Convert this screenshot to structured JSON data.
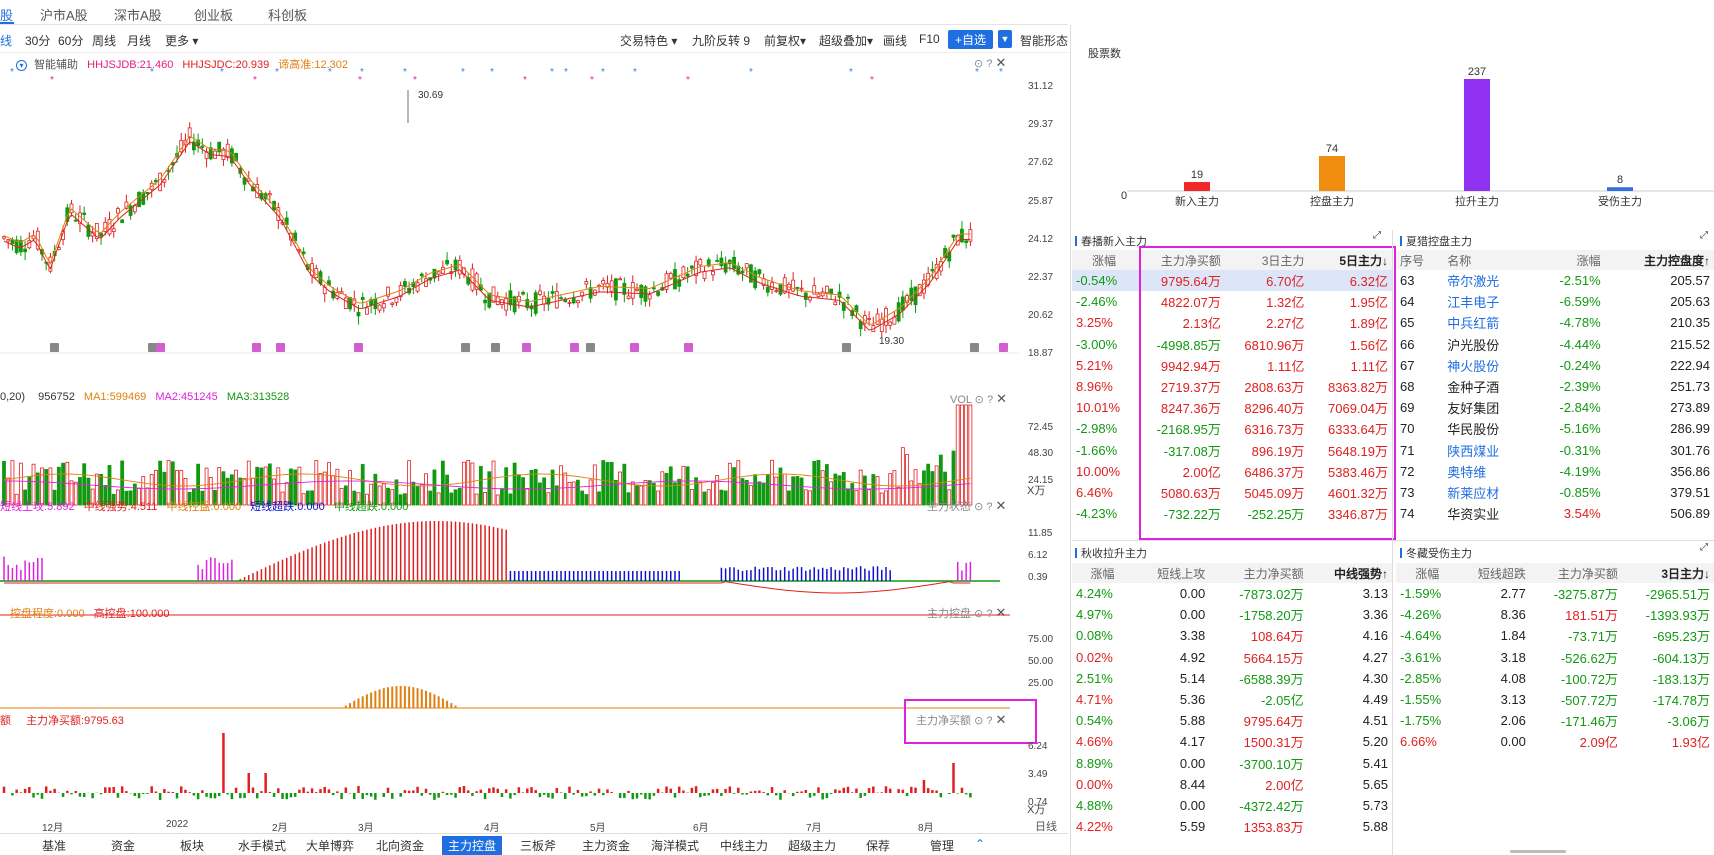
{
  "topnav": [
    "股",
    "沪市A股",
    "深市A股",
    "创业板",
    "科创板"
  ],
  "toolbar": {
    "periods": [
      "线",
      "30分",
      "60分",
      "周线",
      "月线",
      "更多 ▾"
    ],
    "right": [
      "交易特色 ▾",
      "九阶反转 9",
      "前复权▾",
      "超级叠加▾",
      "画线",
      "F10"
    ],
    "add_label": "+自选",
    "drop": "▼",
    "smart": "智能形态"
  },
  "kline": {
    "indicators": {
      "assist": "智能辅助",
      "hhjsjdb": "HHJSJDB:21.460",
      "hhjsjdc": "HHJSJDC:20.939",
      "high": "谛高准:12.302"
    },
    "axis": [
      "31.12",
      "29.37",
      "27.62",
      "25.87",
      "24.12",
      "22.37",
      "20.62",
      "18.87"
    ],
    "high_label": "30.69",
    "low_label": "19.30"
  },
  "vol": {
    "labels": {
      "param": "0,20)",
      "vol": "956752",
      "ma1": "MA1:599469",
      "ma2": "MA2:451245",
      "ma3": "MA3:313528"
    },
    "tool": "VOL",
    "axis": [
      "72.45",
      "48.30",
      "24.15"
    ],
    "unit": "X万"
  },
  "state": {
    "labels": {
      "a": "短线上攻:5.892",
      "b": "中线强势:4.511",
      "c": "中线控盘:0.000",
      "d": "短线超跌:0.000",
      "e": "中线超跌:0.000"
    },
    "tool": "主力状态",
    "axis": [
      "11.85",
      "6.12",
      "0.39"
    ]
  },
  "ctrl": {
    "labels": {
      "a": "控盘程度:0.000",
      "b": "高控盘:100.000"
    },
    "tool": "主力控盘",
    "axis": [
      "75.00",
      "50.00",
      "25.00"
    ]
  },
  "net": {
    "labels": {
      "pre": "额",
      "a": "主力净买额:9795.63"
    },
    "tool": "主力净买额",
    "axis": [
      "6.24",
      "3.49",
      "0.74"
    ],
    "unit": "X万"
  },
  "xaxis": [
    "12月",
    "2022",
    "2月",
    "3月",
    "4月",
    "5月",
    "6月",
    "7月",
    "8月"
  ],
  "xaxis_right": "日线",
  "bottomtabs": [
    "基准",
    "资金",
    "板块",
    "水手模式",
    "大单博弈",
    "北向资金",
    "主力控盘",
    "三板斧",
    "主力资金",
    "海洋模式",
    "中线主力",
    "超级主力",
    "保荐",
    "管理"
  ],
  "active_tab": "主力控盘",
  "chart_data": {
    "type": "bar",
    "ylabel": "股票数",
    "zero_label": "0",
    "categories": [
      "新入主力",
      "控盘主力",
      "拉升主力",
      "受伤主力"
    ],
    "values": [
      19,
      74,
      237,
      8
    ],
    "colors": [
      "#f02828",
      "#f08c10",
      "#9030f0",
      "#3070e0"
    ]
  },
  "panel_new": {
    "title": "春播新入主力",
    "headers": [
      "涨幅",
      "主力净买额",
      "3日主力",
      "5日主力↓"
    ],
    "rows": [
      [
        "-0.54%",
        "9795.64万",
        "6.70亿",
        "6.32亿"
      ],
      [
        "-2.46%",
        "4822.07万",
        "1.32亿",
        "1.95亿"
      ],
      [
        "3.25%",
        "2.13亿",
        "2.27亿",
        "1.89亿"
      ],
      [
        "-3.00%",
        "-4998.85万",
        "6810.96万",
        "1.56亿"
      ],
      [
        "5.21%",
        "9942.94万",
        "1.11亿",
        "1.11亿"
      ],
      [
        "8.96%",
        "2719.37万",
        "2808.63万",
        "8363.82万"
      ],
      [
        "10.01%",
        "8247.36万",
        "8296.40万",
        "7069.04万"
      ],
      [
        "-2.98%",
        "-2168.95万",
        "6316.73万",
        "6333.64万"
      ],
      [
        "-1.66%",
        "-317.08万",
        "896.19万",
        "5648.19万"
      ],
      [
        "10.00%",
        "2.00亿",
        "6486.37万",
        "5383.46万"
      ],
      [
        "6.46%",
        "5080.63万",
        "5045.09万",
        "4601.32万"
      ],
      [
        "-4.23%",
        "-732.22万",
        "-252.25万",
        "3346.87万"
      ]
    ]
  },
  "panel_ctrl": {
    "title": "夏猎控盘主力",
    "headers": [
      "序号",
      "名称",
      "涨幅",
      "主力控盘度↑"
    ],
    "rows": [
      [
        "63",
        "帝尔激光",
        "-2.51%",
        "205.57"
      ],
      [
        "64",
        "江丰电子",
        "-6.59%",
        "205.63"
      ],
      [
        "65",
        "中兵红箭",
        "-4.78%",
        "210.35"
      ],
      [
        "66",
        "沪光股份",
        "-4.44%",
        "215.52"
      ],
      [
        "67",
        "神火股份",
        "-0.24%",
        "222.94"
      ],
      [
        "68",
        "金种子酒",
        "-2.39%",
        "251.73"
      ],
      [
        "69",
        "友好集团",
        "-2.84%",
        "273.89"
      ],
      [
        "70",
        "华民股份",
        "-5.16%",
        "286.99"
      ],
      [
        "71",
        "陕西煤业",
        "-0.31%",
        "301.76"
      ],
      [
        "72",
        "奥特维",
        "-4.19%",
        "356.86"
      ],
      [
        "73",
        "新莱应材",
        "-0.85%",
        "379.51"
      ],
      [
        "74",
        "华资实业",
        "3.54%",
        "506.89"
      ]
    ]
  },
  "panel_up": {
    "title": "秋收拉升主力",
    "headers": [
      "涨幅",
      "短线上攻",
      "主力净买额",
      "中线强势↑"
    ],
    "rows": [
      [
        "4.24%",
        "0.00",
        "-7873.02万",
        "3.13"
      ],
      [
        "4.97%",
        "0.00",
        "-1758.20万",
        "3.36"
      ],
      [
        "0.08%",
        "3.38",
        "108.64万",
        "4.16"
      ],
      [
        "0.02%",
        "4.92",
        "5664.15万",
        "4.27"
      ],
      [
        "2.51%",
        "5.14",
        "-6588.39万",
        "4.30"
      ],
      [
        "4.71%",
        "5.36",
        "-2.05亿",
        "4.49"
      ],
      [
        "0.54%",
        "5.88",
        "9795.64万",
        "4.51"
      ],
      [
        "4.66%",
        "4.17",
        "1500.31万",
        "5.20"
      ],
      [
        "8.89%",
        "0.00",
        "-3700.10万",
        "5.41"
      ],
      [
        "0.00%",
        "8.44",
        "2.00亿",
        "5.65"
      ],
      [
        "4.88%",
        "0.00",
        "-4372.42万",
        "5.73"
      ],
      [
        "4.22%",
        "5.59",
        "1353.83万",
        "5.88"
      ]
    ]
  },
  "panel_hurt": {
    "title": "冬藏受伤主力",
    "headers": [
      "涨幅",
      "短线超跌",
      "主力净买额",
      "3日主力↓"
    ],
    "rows": [
      [
        "-1.59%",
        "2.77",
        "-3275.87万",
        "-2965.51万"
      ],
      [
        "-4.26%",
        "8.36",
        "181.51万",
        "-1393.93万"
      ],
      [
        "-4.64%",
        "1.84",
        "-73.71万",
        "-695.23万"
      ],
      [
        "-3.61%",
        "3.18",
        "-526.62万",
        "-604.13万"
      ],
      [
        "-2.85%",
        "4.08",
        "-100.72万",
        "-183.13万"
      ],
      [
        "-1.55%",
        "3.13",
        "-507.72万",
        "-174.78万"
      ],
      [
        "-1.75%",
        "2.06",
        "-171.46万",
        "-3.06万"
      ],
      [
        "6.66%",
        "0.00",
        "2.09亿",
        "1.93亿"
      ]
    ]
  }
}
